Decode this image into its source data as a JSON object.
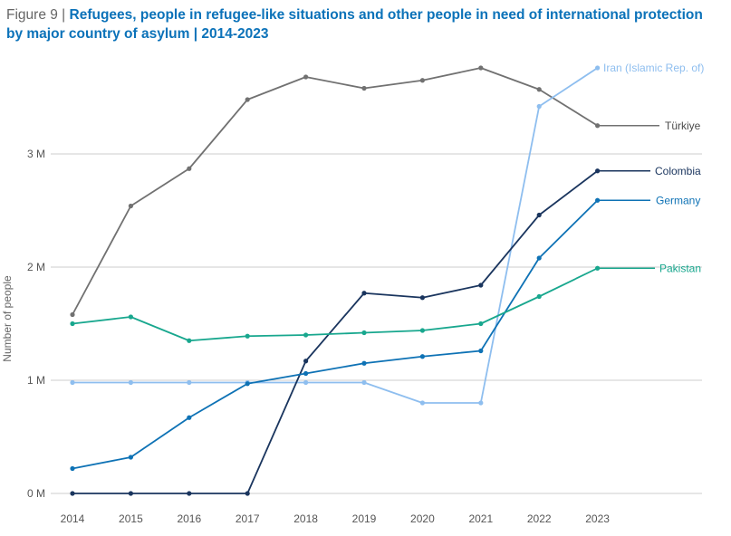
{
  "header": {
    "figure_label": "Figure 9 | ",
    "title": "Refugees, people in refugee-like situations and other people in need of international protection by major country of asylum | 2014-2023"
  },
  "chart_data": {
    "type": "line",
    "title": "Refugees, people in refugee-like situations and other people in need of international protection by major country of asylum | 2014-2023",
    "xlabel": "",
    "ylabel": "Number of people",
    "x": [
      "2014",
      "2015",
      "2016",
      "2017",
      "2018",
      "2019",
      "2020",
      "2021",
      "2022",
      "2023"
    ],
    "ylim": [
      0,
      3.8
    ],
    "yticks": [
      0,
      1,
      2,
      3
    ],
    "ytick_labels": [
      "0 M",
      "1 M",
      "2 M",
      "3 M"
    ],
    "y_unit": "millions",
    "grid": true,
    "legend": "direct-labels-right",
    "series": [
      {
        "name": "Türkiye",
        "color": "#717171",
        "values": [
          1.58,
          2.54,
          2.87,
          3.48,
          3.68,
          3.58,
          3.65,
          3.76,
          3.57,
          3.25
        ]
      },
      {
        "name": "Iran (Islamic Rep. of)",
        "color": "#8ebeef",
        "values": [
          0.98,
          0.98,
          0.98,
          0.98,
          0.98,
          0.98,
          0.8,
          0.8,
          3.42,
          3.76
        ]
      },
      {
        "name": "Colombia",
        "color": "#1a355e",
        "values": [
          0.0,
          0.0,
          0.0,
          0.0,
          1.17,
          1.77,
          1.73,
          1.84,
          2.46,
          2.85
        ]
      },
      {
        "name": "Germany",
        "color": "#0e72b5",
        "values": [
          0.22,
          0.32,
          0.67,
          0.97,
          1.06,
          1.15,
          1.21,
          1.26,
          2.08,
          2.59
        ]
      },
      {
        "name": "Pakistan",
        "color": "#18a78e",
        "values": [
          1.5,
          1.56,
          1.35,
          1.39,
          1.4,
          1.42,
          1.44,
          1.5,
          1.74,
          1.99
        ]
      }
    ]
  }
}
